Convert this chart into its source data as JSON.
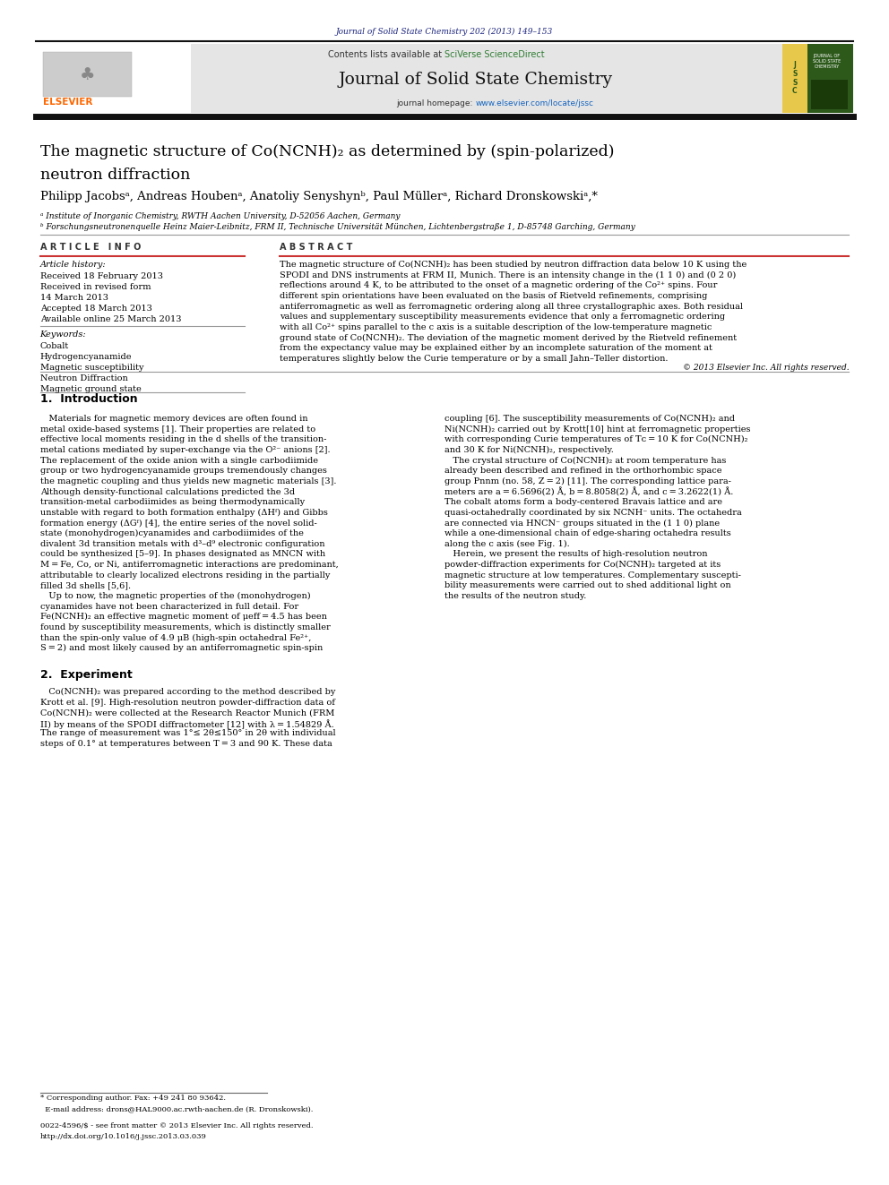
{
  "page_width": 9.92,
  "page_height": 13.23,
  "bg_color": "#ffffff",
  "journal_ref": "Journal of Solid State Chemistry 202 (2013) 149–153",
  "journal_ref_color": "#1a237e",
  "header_bg": "#e5e5e5",
  "sciverse_color": "#2e7d32",
  "journal_title": "Journal of Solid State Chemistry",
  "homepage_color": "#1565c0",
  "elsevier_color": "#ff6600",
  "article_info_title": "A R T I C L E   I N F O",
  "abstract_title": "A B S T R A C T",
  "keywords": [
    "Cobalt",
    "Hydrogencyanamide",
    "Magnetic susceptibility",
    "Neutron Diffraction",
    "Magnetic ground state"
  ],
  "copyright": "© 2013 Elsevier Inc. All rights reserved.",
  "bottom_text1": "0022-4596/$ - see front matter © 2013 Elsevier Inc. All rights reserved.",
  "bottom_text2": "http://dx.doi.org/10.1016/j.jssc.2013.03.039"
}
